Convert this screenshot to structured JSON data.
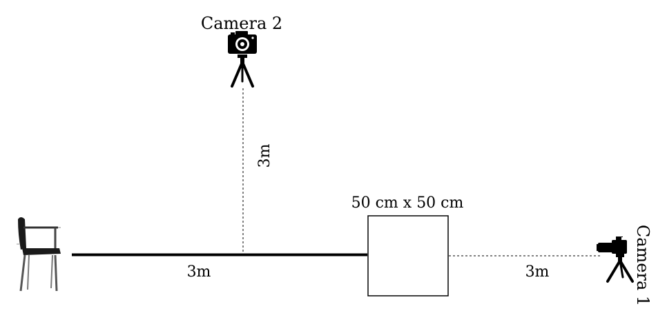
{
  "labels": {
    "camera2": "Camera 2",
    "camera1": "Camera 1",
    "vertical_distance": "3m",
    "main_distance": "3m",
    "right_distance": "3m",
    "box_size": "50 cm x 50 cm"
  },
  "colors": {
    "line": "#000000",
    "background": "#ffffff",
    "chair_seat": "#1a1a1a",
    "chair_frame": "#555555"
  },
  "icons": {
    "chair": "office-chair-icon",
    "camera_top": "camera-on-tripod-icon",
    "camera_side": "dslr-camera-on-tripod-icon"
  }
}
